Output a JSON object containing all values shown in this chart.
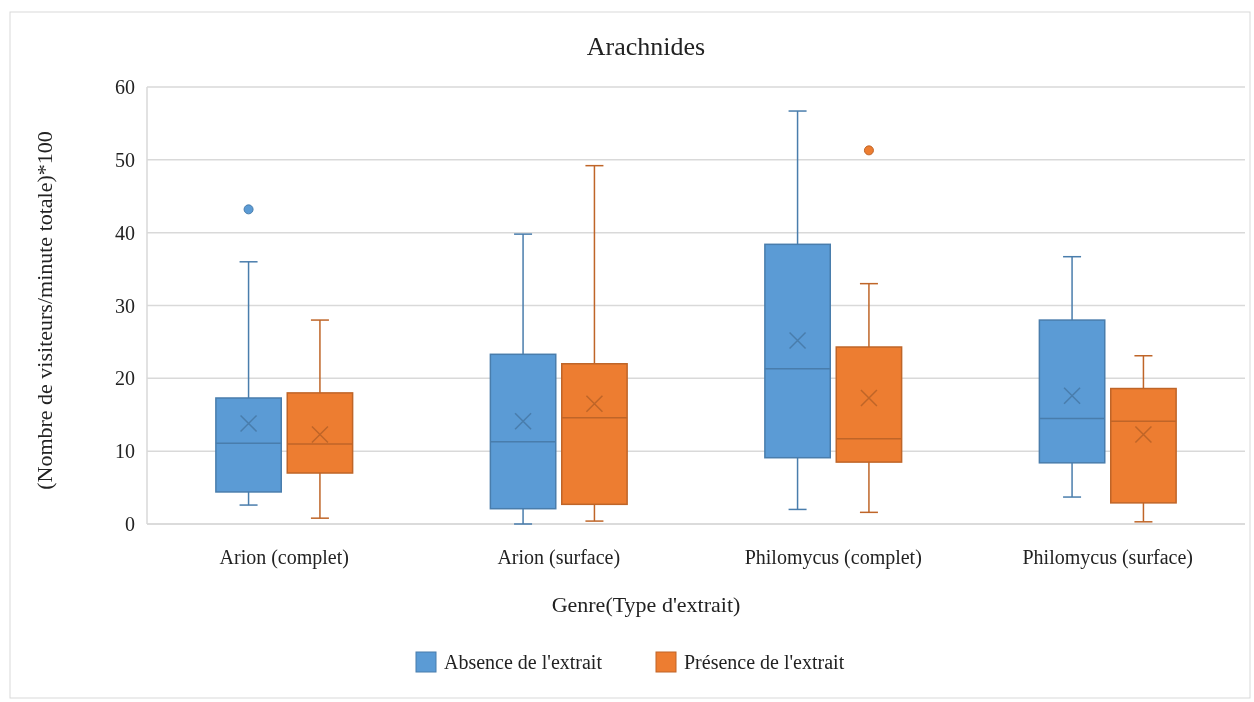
{
  "chart_data": {
    "type": "box",
    "title": "Arachnides",
    "xlabel": "Genre(Type d'extrait)",
    "ylabel": "(Nombre de visiteurs/minute totale)*100",
    "categories": [
      "Arion (complet)",
      "Arion (surface)",
      "Philomycus (complet)",
      "Philomycus (surface)"
    ],
    "ylim": [
      0,
      60
    ],
    "yticks": [
      0,
      10,
      20,
      30,
      40,
      50,
      60
    ],
    "grid": "y",
    "legend": "bottom",
    "series": [
      {
        "name": "Absence de l'extrait",
        "color": "#5b9bd5",
        "boxes": [
          {
            "low": 2.6,
            "q1": 4.4,
            "median": 11.1,
            "q3": 17.3,
            "high": 36,
            "mean": 13.8,
            "outliers": [
              43.2
            ]
          },
          {
            "low": 0,
            "q1": 2.1,
            "median": 11.3,
            "q3": 23.3,
            "high": 39.8,
            "mean": 14.1
          },
          {
            "low": 2.0,
            "q1": 9.1,
            "median": 21.3,
            "q3": 38.4,
            "high": 56.7,
            "mean": 25.2
          },
          {
            "low": 3.7,
            "q1": 8.4,
            "median": 14.5,
            "q3": 28,
            "high": 36.7,
            "mean": 17.6
          }
        ]
      },
      {
        "name": "Présence de l'extrait",
        "color": "#ed7d31",
        "boxes": [
          {
            "low": 0.8,
            "q1": 7,
            "median": 11,
            "q3": 18,
            "high": 28,
            "mean": 12.3
          },
          {
            "low": 0.4,
            "q1": 2.7,
            "median": 14.6,
            "q3": 22,
            "high": 49.2,
            "mean": 16.5
          },
          {
            "low": 1.6,
            "q1": 8.5,
            "median": 11.7,
            "q3": 24.3,
            "high": 33,
            "mean": 17.3,
            "outliers": [
              51.3
            ]
          },
          {
            "low": 0.3,
            "q1": 2.9,
            "median": 14.1,
            "q3": 18.6,
            "high": 23.1,
            "mean": 12.3
          }
        ]
      }
    ]
  }
}
